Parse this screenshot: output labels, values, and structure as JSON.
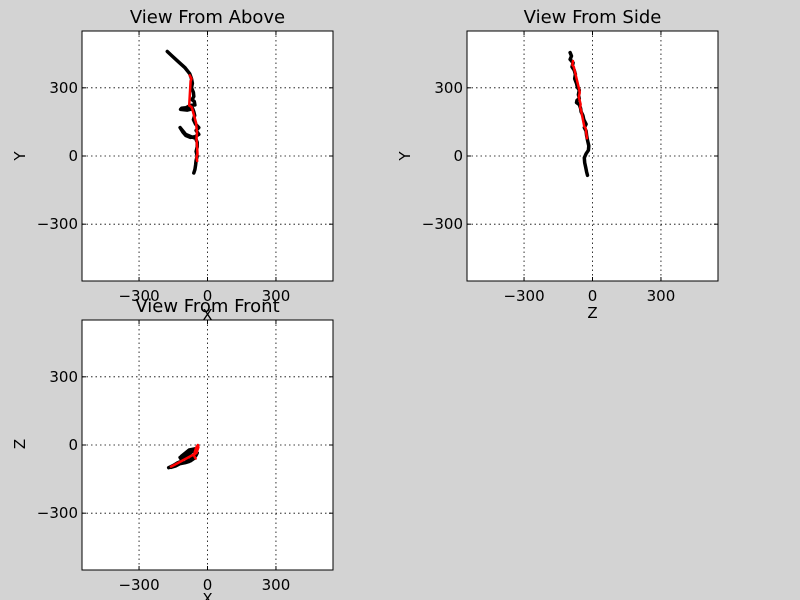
{
  "chart_data": [
    {
      "type": "line",
      "title": "View From Above",
      "xlabel": "X",
      "ylabel": "Y",
      "xlim": [
        -550,
        550
      ],
      "ylim": [
        -550,
        550
      ],
      "xticks": [
        -300,
        0,
        300
      ],
      "yticks": [
        -300,
        0,
        300
      ],
      "xtick_labels": [
        "−300",
        "0",
        "300"
      ],
      "ytick_labels": [
        "−300",
        "0",
        "300"
      ],
      "grid": true,
      "series": [
        {
          "color": "#000000",
          "points": [
            [
              -176,
              460
            ],
            [
              -155,
              440
            ],
            [
              -128,
              415
            ],
            [
              -100,
              390
            ],
            [
              -78,
              362
            ],
            [
              -70,
              340
            ],
            [
              -66,
              320
            ],
            [
              -70,
              300
            ],
            [
              -62,
              280
            ],
            [
              -60,
              262
            ],
            [
              -68,
              248
            ],
            [
              -58,
              240
            ],
            [
              -55,
              225
            ],
            [
              -75,
              222
            ],
            [
              -95,
              212
            ],
            [
              -114,
              210
            ],
            [
              -118,
              205
            ],
            [
              -88,
              202
            ],
            [
              -65,
              208
            ],
            [
              -60,
              195
            ],
            [
              -56,
              178
            ],
            [
              -62,
              160
            ],
            [
              -52,
              140
            ],
            [
              -38,
              125
            ],
            [
              -50,
              112
            ],
            [
              -38,
              95
            ],
            [
              -55,
              85
            ],
            [
              -75,
              82
            ],
            [
              -95,
              90
            ],
            [
              -108,
              105
            ],
            [
              -120,
              125
            ],
            [
              -96,
              95
            ],
            [
              -70,
              84
            ],
            [
              -52,
              78
            ],
            [
              -45,
              60
            ],
            [
              -45,
              40
            ],
            [
              -50,
              20
            ],
            [
              -45,
              0
            ],
            [
              -50,
              -20
            ],
            [
              -52,
              -40
            ],
            [
              -55,
              -60
            ],
            [
              -60,
              -75
            ]
          ]
        },
        {
          "color": "#ff0000",
          "points": [
            [
              -78,
              355
            ],
            [
              -70,
              340
            ],
            [
              -74,
              330
            ],
            [
              -80,
              222
            ],
            [
              -70,
              216
            ],
            [
              -66,
              205
            ],
            [
              -50,
              145
            ],
            [
              -46,
              100
            ],
            [
              -48,
              78
            ],
            [
              -44,
              10
            ],
            [
              -48,
              -8
            ],
            [
              -45,
              -22
            ]
          ]
        }
      ]
    },
    {
      "type": "line",
      "title": "View From Side",
      "xlabel": "Z",
      "ylabel": "Y",
      "xlim": [
        -550,
        550
      ],
      "ylim": [
        -550,
        550
      ],
      "xticks": [
        -300,
        0,
        300
      ],
      "yticks": [
        -300,
        0,
        300
      ],
      "xtick_labels": [
        "−300",
        "0",
        "300"
      ],
      "ytick_labels": [
        "−300",
        "0",
        "300"
      ],
      "grid": true,
      "series": [
        {
          "color": "#000000",
          "points": [
            [
              -98,
              455
            ],
            [
              -92,
              440
            ],
            [
              -98,
              425
            ],
            [
              -85,
              410
            ],
            [
              -90,
              392
            ],
            [
              -80,
              378
            ],
            [
              -75,
              360
            ],
            [
              -78,
              340
            ],
            [
              -70,
              320
            ],
            [
              -66,
              302
            ],
            [
              -58,
              290
            ],
            [
              -62,
              270
            ],
            [
              -58,
              252
            ],
            [
              -68,
              245
            ],
            [
              -70,
              235
            ],
            [
              -58,
              226
            ],
            [
              -52,
              210
            ],
            [
              -50,
              195
            ],
            [
              -42,
              178
            ],
            [
              -38,
              160
            ],
            [
              -28,
              140
            ],
            [
              -36,
              125
            ],
            [
              -28,
              110
            ],
            [
              -26,
              90
            ],
            [
              -22,
              70
            ],
            [
              -16,
              45
            ],
            [
              -18,
              25
            ],
            [
              -28,
              10
            ],
            [
              -36,
              -8
            ],
            [
              -34,
              -30
            ],
            [
              -30,
              -50
            ],
            [
              -26,
              -70
            ],
            [
              -22,
              -85
            ]
          ]
        },
        {
          "color": "#ff0000",
          "points": [
            [
              -86,
              418
            ],
            [
              -88,
              400
            ],
            [
              -82,
              392
            ],
            [
              -58,
              290
            ],
            [
              -56,
              278
            ],
            [
              -60,
              260
            ],
            [
              -52,
              228
            ],
            [
              -54,
              214
            ],
            [
              -50,
              200
            ],
            [
              -36,
              130
            ],
            [
              -30,
              122
            ],
            [
              -26,
              90
            ],
            [
              -24,
              78
            ]
          ]
        }
      ]
    },
    {
      "type": "line",
      "title": "View From Front",
      "xlabel": "X",
      "ylabel": "Z",
      "xlim": [
        -550,
        550
      ],
      "ylim": [
        -550,
        550
      ],
      "xticks": [
        -300,
        0,
        300
      ],
      "yticks": [
        -300,
        0,
        300
      ],
      "xtick_labels": [
        "−300",
        "0",
        "300"
      ],
      "ytick_labels": [
        "−300",
        "0",
        "300"
      ],
      "grid": true,
      "series": [
        {
          "color": "#000000",
          "points": [
            [
              -170,
              -100
            ],
            [
              -150,
              -90
            ],
            [
              -130,
              -78
            ],
            [
              -110,
              -70
            ],
            [
              -120,
              -55
            ],
            [
              -100,
              -50
            ],
            [
              -80,
              -40
            ],
            [
              -70,
              -30
            ],
            [
              -55,
              -25
            ],
            [
              -45,
              -15
            ],
            [
              -60,
              -18
            ],
            [
              -80,
              -22
            ],
            [
              -100,
              -38
            ],
            [
              -115,
              -50
            ],
            [
              -95,
              -62
            ],
            [
              -75,
              -70
            ],
            [
              -60,
              -60
            ],
            [
              -50,
              -45
            ],
            [
              -45,
              -35
            ],
            [
              -62,
              -50
            ],
            [
              -80,
              -72
            ],
            [
              -98,
              -78
            ],
            [
              -120,
              -82
            ],
            [
              -140,
              -92
            ],
            [
              -160,
              -98
            ]
          ]
        },
        {
          "color": "#ff0000",
          "points": [
            [
              -160,
              -95
            ],
            [
              -150,
              -90
            ],
            [
              -48,
              -35
            ],
            [
              -45,
              -25
            ],
            [
              -40,
              -10
            ],
            [
              -42,
              0
            ],
            [
              -50,
              -12
            ],
            [
              -55,
              -30
            ],
            [
              -60,
              -45
            ],
            [
              -52,
              -60
            ]
          ]
        }
      ]
    }
  ]
}
